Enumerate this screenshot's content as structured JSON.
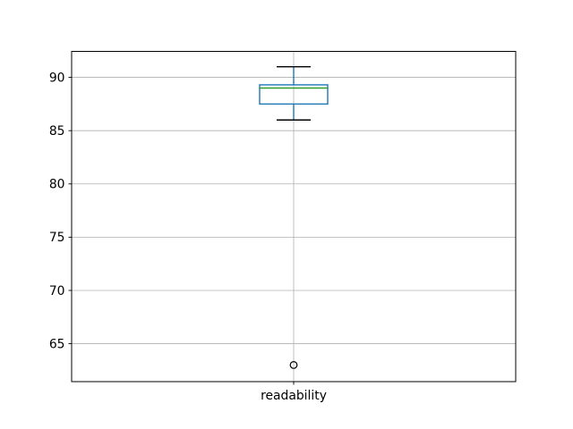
{
  "figure": {
    "background": "#ffffff",
    "title": ""
  },
  "chart_data": {
    "type": "boxplot",
    "title": "",
    "xlabel": "",
    "ylabel": "",
    "categories": [
      "readability"
    ],
    "series": [
      {
        "name": "readability",
        "whisker_low": 86,
        "q1": 87.5,
        "median": 89,
        "q3": 89.3,
        "whisker_high": 91,
        "outliers": [
          63
        ]
      }
    ],
    "yticks": [
      65,
      70,
      75,
      80,
      85,
      90
    ],
    "ytick_labels": [
      "65",
      "70",
      "75",
      "80",
      "85",
      "90"
    ],
    "ylim": [
      61.44,
      92.44
    ],
    "grid": true,
    "legend": "none",
    "colors": {
      "box": "#1f77b4",
      "whisker": "#1f77b4",
      "cap": "#000000",
      "median": "#2ca02c",
      "outlier_edge": "#000000",
      "grid": "#b0b0b0",
      "axis": "#000000",
      "text": "#000000",
      "background": "#ffffff"
    }
  }
}
